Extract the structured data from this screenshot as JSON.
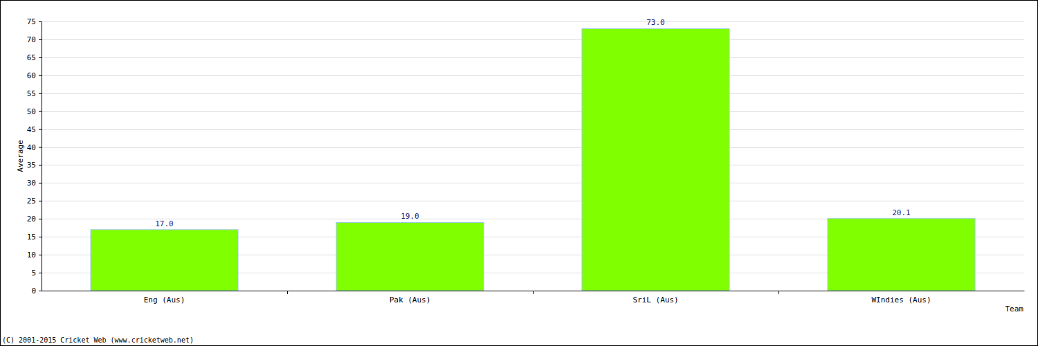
{
  "chart_data": {
    "type": "bar",
    "x_label": "Team",
    "y_label": "Average",
    "categories": [
      "Eng (Aus)",
      "Pak (Aus)",
      "SriL (Aus)",
      "WIndies (Aus)"
    ],
    "values": [
      17,
      19,
      73,
      20.1
    ],
    "value_labels": [
      "17.0",
      "19.0",
      "73.0",
      "20.1"
    ],
    "color": "#80ff00",
    "ylim": [
      0,
      75
    ],
    "yticks": [
      0,
      5,
      10,
      15,
      20,
      25,
      30,
      35,
      40,
      45,
      50,
      55,
      60,
      65,
      70,
      75
    ],
    "grid": true,
    "data_labels": true,
    "annotations": [
      "(C) 2001-2015 Cricket Web (www.cricketweb.net)"
    ]
  }
}
